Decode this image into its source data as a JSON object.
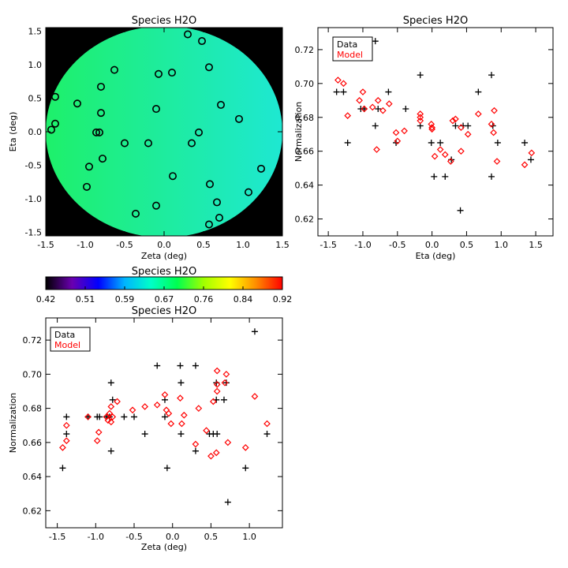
{
  "chart_data": [
    {
      "id": "map",
      "type": "scatter",
      "title": "Species H2O",
      "xlabel": "Zeta (deg)",
      "ylabel": "Eta (deg)",
      "xlim": [
        -1.5,
        1.5
      ],
      "ylim": [
        -1.55,
        1.55
      ],
      "xticks": [
        "-1.5",
        "-1.0",
        "-0.5",
        "0.0",
        "0.5",
        "1.0",
        "1.5"
      ],
      "yticks": [
        "-1.5",
        "-1.0",
        "-0.5",
        "0.0",
        "0.5",
        "1.0",
        "1.5"
      ],
      "background": "#000000",
      "field_color_left": "#1ef06a",
      "field_color_right": "#1ee8d2",
      "marker": "circle",
      "points": [
        [
          0.3,
          1.45
        ],
        [
          0.48,
          1.35
        ],
        [
          -0.63,
          0.92
        ],
        [
          -0.07,
          0.86
        ],
        [
          0.1,
          0.88
        ],
        [
          0.57,
          0.96
        ],
        [
          -1.38,
          0.52
        ],
        [
          -1.1,
          0.42
        ],
        [
          -0.8,
          0.67
        ],
        [
          -0.8,
          0.28
        ],
        [
          -0.1,
          0.34
        ],
        [
          0.72,
          0.4
        ],
        [
          -1.38,
          0.12
        ],
        [
          -1.43,
          0.03
        ],
        [
          -0.86,
          -0.01
        ],
        [
          -0.82,
          -0.01
        ],
        [
          0.44,
          -0.01
        ],
        [
          0.95,
          0.19
        ],
        [
          -0.5,
          -0.17
        ],
        [
          -0.2,
          -0.17
        ],
        [
          0.35,
          -0.17
        ],
        [
          -0.78,
          -0.4
        ],
        [
          -0.95,
          -0.52
        ],
        [
          -0.98,
          -0.82
        ],
        [
          0.11,
          -0.66
        ],
        [
          0.58,
          -0.78
        ],
        [
          1.23,
          -0.55
        ],
        [
          1.07,
          -0.9
        ],
        [
          -0.1,
          -1.1
        ],
        [
          -0.36,
          -1.22
        ],
        [
          0.67,
          -1.05
        ],
        [
          0.7,
          -1.28
        ],
        [
          0.57,
          -1.38
        ]
      ]
    },
    {
      "id": "eta",
      "type": "scatter",
      "title": "Species H2O",
      "xlabel": "Eta (deg)",
      "ylabel": "Normalization",
      "xlim": [
        -1.65,
        1.75
      ],
      "ylim": [
        0.61,
        0.733
      ],
      "xticks": [
        "-1.5",
        "-1.0",
        "-0.5",
        "0.0",
        "0.5",
        "1.0",
        "1.5"
      ],
      "yticks": [
        "0.62",
        "0.64",
        "0.66",
        "0.68",
        "0.70",
        "0.72"
      ],
      "legend": [
        {
          "label": "Data",
          "color": "#000000"
        },
        {
          "label": "Model",
          "color": "#ff0000"
        }
      ],
      "legend_position": "top-left",
      "series": [
        {
          "name": "Data",
          "marker": "plus",
          "color": "#000000",
          "points": [
            [
              -1.38,
              0.695
            ],
            [
              -1.28,
              0.695
            ],
            [
              -1.22,
              0.665
            ],
            [
              -1.03,
              0.685
            ],
            [
              -0.98,
              0.685
            ],
            [
              -0.82,
              0.725
            ],
            [
              -0.82,
              0.675
            ],
            [
              -0.78,
              0.685
            ],
            [
              -0.63,
              0.695
            ],
            [
              -0.52,
              0.665
            ],
            [
              -0.38,
              0.685
            ],
            [
              -0.17,
              0.705
            ],
            [
              -0.17,
              0.675
            ],
            [
              -0.01,
              0.665
            ],
            [
              0.03,
              0.645
            ],
            [
              0.12,
              0.665
            ],
            [
              0.19,
              0.645
            ],
            [
              0.28,
              0.655
            ],
            [
              0.34,
              0.675
            ],
            [
              0.41,
              0.625
            ],
            [
              0.45,
              0.675
            ],
            [
              0.52,
              0.675
            ],
            [
              0.67,
              0.695
            ],
            [
              0.86,
              0.705
            ],
            [
              0.86,
              0.645
            ],
            [
              0.88,
              0.675
            ],
            [
              0.95,
              0.665
            ],
            [
              1.34,
              0.665
            ],
            [
              1.43,
              0.655
            ]
          ]
        },
        {
          "name": "Model",
          "marker": "diamond",
          "color": "#ff0000",
          "points": [
            [
              -1.36,
              0.702
            ],
            [
              -1.28,
              0.7
            ],
            [
              -1.22,
              0.681
            ],
            [
              -1.05,
              0.69
            ],
            [
              -1.0,
              0.695
            ],
            [
              -0.98,
              0.685
            ],
            [
              -0.86,
              0.686
            ],
            [
              -0.8,
              0.661
            ],
            [
              -0.78,
              0.69
            ],
            [
              -0.71,
              0.684
            ],
            [
              -0.62,
              0.688
            ],
            [
              -0.52,
              0.671
            ],
            [
              -0.5,
              0.666
            ],
            [
              -0.4,
              0.672
            ],
            [
              -0.17,
              0.682
            ],
            [
              -0.17,
              0.68
            ],
            [
              -0.17,
              0.678
            ],
            [
              -0.01,
              0.676
            ],
            [
              0.0,
              0.674
            ],
            [
              0.0,
              0.673
            ],
            [
              0.04,
              0.657
            ],
            [
              0.12,
              0.661
            ],
            [
              0.19,
              0.658
            ],
            [
              0.27,
              0.654
            ],
            [
              0.3,
              0.678
            ],
            [
              0.34,
              0.679
            ],
            [
              0.42,
              0.674
            ],
            [
              0.42,
              0.66
            ],
            [
              0.52,
              0.67
            ],
            [
              0.67,
              0.682
            ],
            [
              0.86,
              0.676
            ],
            [
              0.89,
              0.671
            ],
            [
              0.9,
              0.684
            ],
            [
              0.94,
              0.654
            ],
            [
              1.34,
              0.652
            ],
            [
              1.44,
              0.659
            ]
          ]
        }
      ]
    },
    {
      "id": "zeta",
      "type": "scatter",
      "title": "Species H2O",
      "xlabel": "Zeta (deg)",
      "ylabel": "Normalization",
      "xlim": [
        -1.65,
        1.43
      ],
      "ylim": [
        0.61,
        0.733
      ],
      "xticks": [
        "-1.5",
        "-1.0",
        "-0.5",
        "0.0",
        "0.5",
        "1.0"
      ],
      "yticks": [
        "0.62",
        "0.64",
        "0.66",
        "0.68",
        "0.70",
        "0.72"
      ],
      "legend": [
        {
          "label": "Data",
          "color": "#000000"
        },
        {
          "label": "Model",
          "color": "#ff0000"
        }
      ],
      "legend_position": "top-left",
      "series": [
        {
          "name": "Data",
          "marker": "plus",
          "color": "#000000",
          "points": [
            [
              -1.43,
              0.645
            ],
            [
              -1.38,
              0.675
            ],
            [
              -1.38,
              0.665
            ],
            [
              -1.1,
              0.675
            ],
            [
              -0.98,
              0.675
            ],
            [
              -0.95,
              0.675
            ],
            [
              -0.86,
              0.675
            ],
            [
              -0.82,
              0.675
            ],
            [
              -0.8,
              0.695
            ],
            [
              -0.8,
              0.655
            ],
            [
              -0.78,
              0.685
            ],
            [
              -0.63,
              0.675
            ],
            [
              -0.5,
              0.675
            ],
            [
              -0.36,
              0.665
            ],
            [
              -0.2,
              0.705
            ],
            [
              -0.1,
              0.685
            ],
            [
              -0.1,
              0.675
            ],
            [
              -0.07,
              0.645
            ],
            [
              0.1,
              0.705
            ],
            [
              0.11,
              0.695
            ],
            [
              0.11,
              0.665
            ],
            [
              0.3,
              0.705
            ],
            [
              0.3,
              0.655
            ],
            [
              0.48,
              0.665
            ],
            [
              0.53,
              0.665
            ],
            [
              0.57,
              0.695
            ],
            [
              0.57,
              0.685
            ],
            [
              0.58,
              0.665
            ],
            [
              0.67,
              0.685
            ],
            [
              0.7,
              0.695
            ],
            [
              0.72,
              0.625
            ],
            [
              0.95,
              0.645
            ],
            [
              1.07,
              0.725
            ],
            [
              1.23,
              0.665
            ]
          ]
        },
        {
          "name": "Model",
          "marker": "diamond",
          "color": "#ff0000",
          "points": [
            [
              -1.43,
              0.657
            ],
            [
              -1.38,
              0.661
            ],
            [
              -1.38,
              0.67
            ],
            [
              -1.1,
              0.675
            ],
            [
              -0.98,
              0.661
            ],
            [
              -0.96,
              0.666
            ],
            [
              -0.86,
              0.675
            ],
            [
              -0.84,
              0.673
            ],
            [
              -0.82,
              0.677
            ],
            [
              -0.8,
              0.681
            ],
            [
              -0.8,
              0.672
            ],
            [
              -0.78,
              0.675
            ],
            [
              -0.72,
              0.684
            ],
            [
              -0.52,
              0.679
            ],
            [
              -0.36,
              0.681
            ],
            [
              -0.2,
              0.682
            ],
            [
              -0.1,
              0.688
            ],
            [
              -0.08,
              0.679
            ],
            [
              -0.05,
              0.677
            ],
            [
              -0.02,
              0.671
            ],
            [
              0.1,
              0.686
            ],
            [
              0.12,
              0.671
            ],
            [
              0.15,
              0.676
            ],
            [
              0.3,
              0.659
            ],
            [
              0.34,
              0.68
            ],
            [
              0.44,
              0.667
            ],
            [
              0.5,
              0.652
            ],
            [
              0.53,
              0.684
            ],
            [
              0.57,
              0.654
            ],
            [
              0.58,
              0.69
            ],
            [
              0.58,
              0.702
            ],
            [
              0.58,
              0.694
            ],
            [
              0.68,
              0.695
            ],
            [
              0.7,
              0.7
            ],
            [
              0.72,
              0.66
            ],
            [
              0.95,
              0.657
            ],
            [
              1.07,
              0.687
            ],
            [
              1.23,
              0.671
            ]
          ]
        }
      ]
    }
  ],
  "colorbar": {
    "title": "Species H2O",
    "tick_labels": [
      "0.42",
      "0.51",
      "0.59",
      "0.67",
      "0.76",
      "0.84",
      "0.92"
    ],
    "range": [
      0.42,
      0.92
    ],
    "stops": [
      "#000000",
      "#6a00b0",
      "#0000ff",
      "#00b4ff",
      "#00ffc8",
      "#00ff50",
      "#a0ff00",
      "#ffff00",
      "#ff8c00",
      "#ff0000"
    ]
  }
}
